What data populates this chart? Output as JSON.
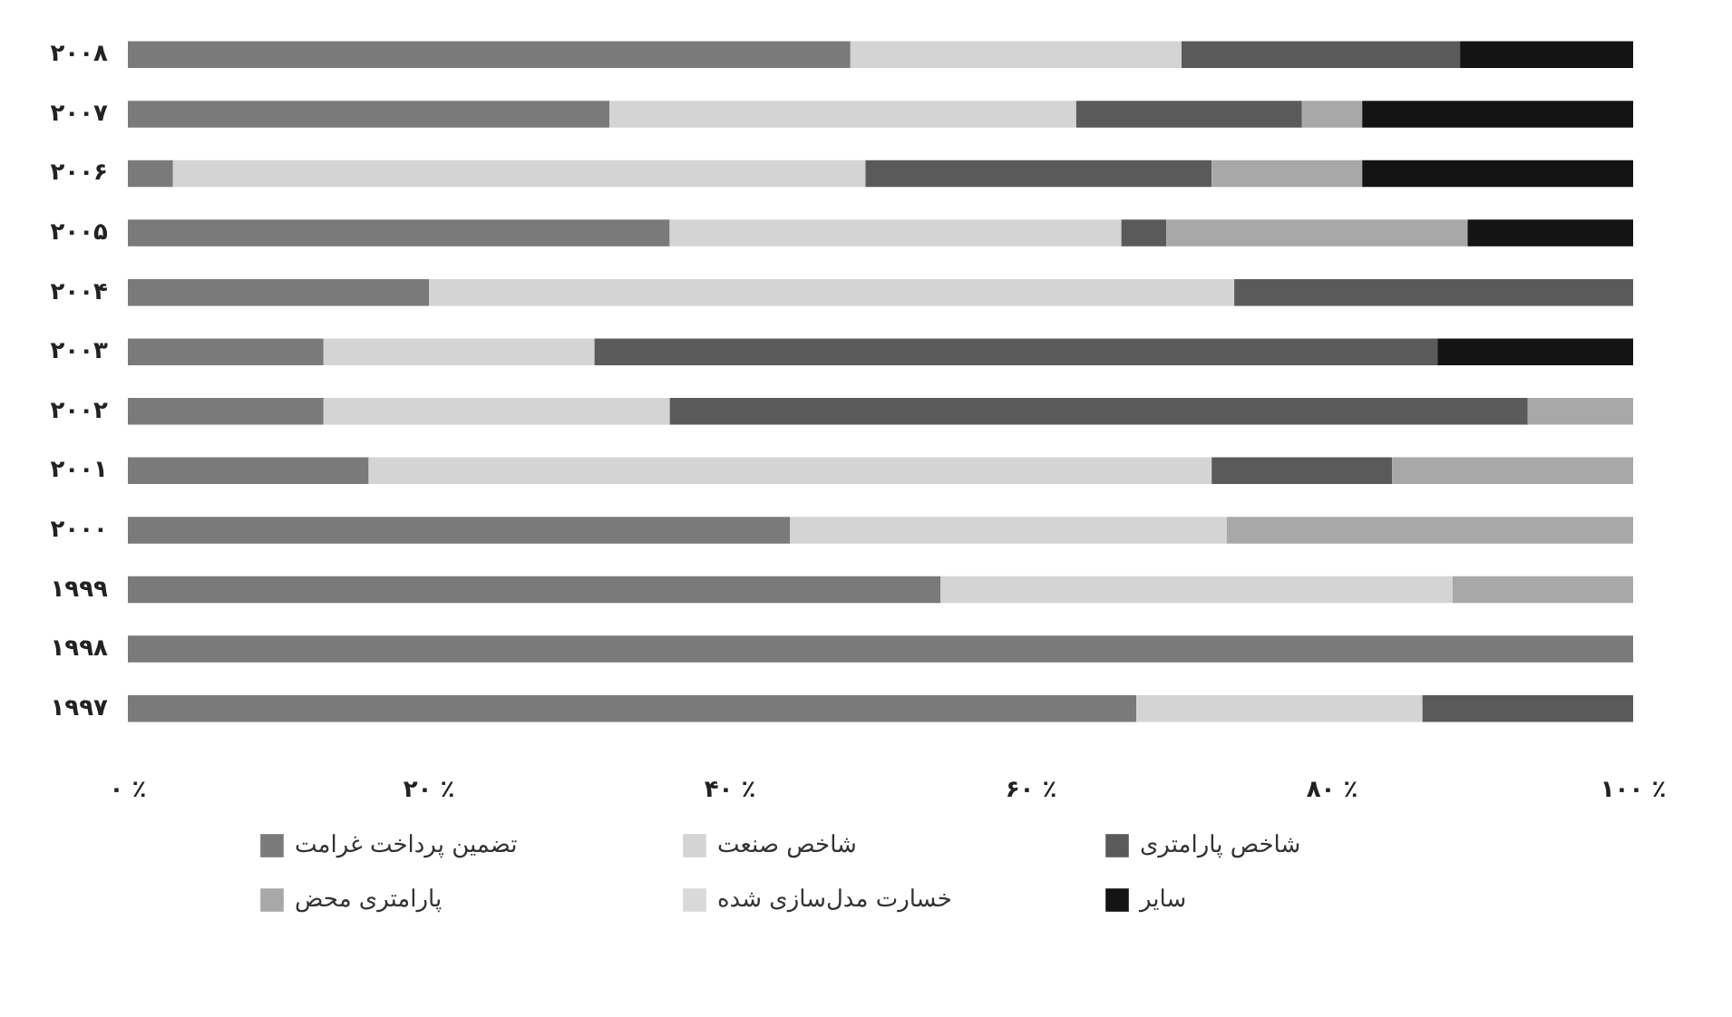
{
  "chart_data": {
    "type": "bar",
    "orientation": "horizontal",
    "stacked": true,
    "categories": [
      "۲۰۰۸",
      "۲۰۰۷",
      "۲۰۰۶",
      "۲۰۰۵",
      "۲۰۰۴",
      "۲۰۰۳",
      "۲۰۰۲",
      "۲۰۰۱",
      "۲۰۰۰",
      "۱۹۹۹",
      "۱۹۹۸",
      "۱۹۹۷"
    ],
    "series": [
      {
        "name": "تضمین پرداخت غرامت",
        "color": "#7a7a7a",
        "values": [
          48,
          32,
          3,
          36,
          20,
          13,
          13,
          16,
          44,
          54,
          100,
          67
        ]
      },
      {
        "name": "شاخص صنعت",
        "color": "#d4d4d4",
        "values": [
          22,
          31,
          46,
          30,
          53.5,
          18,
          23,
          56,
          29,
          34,
          0,
          19
        ]
      },
      {
        "name": "شاخص پارامتری",
        "color": "#5a5a5a",
        "values": [
          18.5,
          15,
          23,
          3,
          26.5,
          56,
          57,
          12,
          0,
          0,
          0,
          14
        ]
      },
      {
        "name": "پارامتری محض",
        "color": "#a8a8a8",
        "values": [
          0,
          4,
          10,
          20,
          0,
          0,
          7,
          16,
          27,
          12,
          0,
          0
        ]
      },
      {
        "name": "خسارت مدل‌سازی شده",
        "color": "#d9d9d9",
        "values": [
          0,
          0,
          0,
          0,
          0,
          0,
          0,
          0,
          0,
          0,
          0,
          0
        ]
      },
      {
        "name": "سایر",
        "color": "#141414",
        "values": [
          11.5,
          18,
          18,
          11,
          0,
          13,
          0,
          0,
          0,
          0,
          0,
          0
        ]
      }
    ],
    "xlim": [
      0,
      100
    ],
    "xticks": [
      {
        "value": 0,
        "label": "۰ ٪"
      },
      {
        "value": 20,
        "label": "۲۰ ٪"
      },
      {
        "value": 40,
        "label": "۴۰ ٪"
      },
      {
        "value": 60,
        "label": "۶۰ ٪"
      },
      {
        "value": 80,
        "label": "۸۰ ٪"
      },
      {
        "value": 100,
        "label": "۱۰۰ ٪"
      }
    ],
    "grid": false,
    "legend": "bottom"
  }
}
